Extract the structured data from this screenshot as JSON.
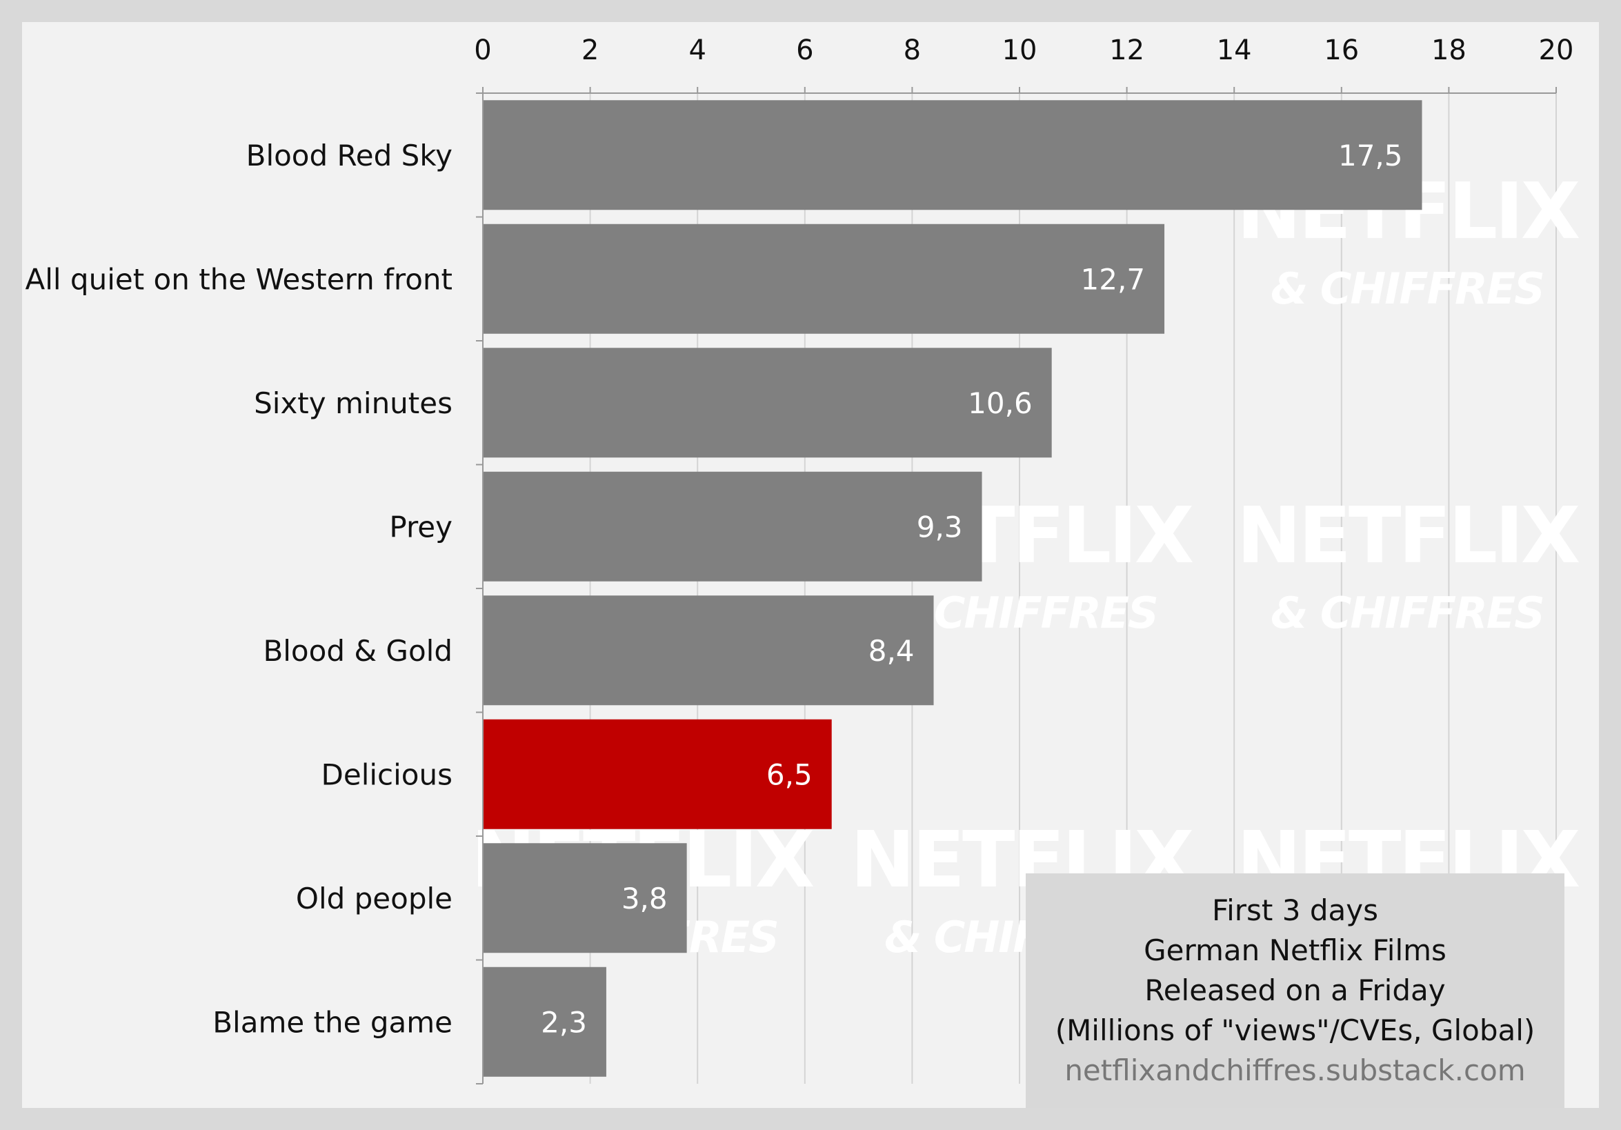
{
  "chart_data": {
    "type": "bar",
    "orientation": "horizontal",
    "categories": [
      "Blood Red Sky",
      "All quiet on the Western front",
      "Sixty minutes",
      "Prey",
      "Blood & Gold",
      "Delicious",
      "Old people",
      "Blame the game"
    ],
    "values": [
      17.5,
      12.7,
      10.6,
      9.3,
      8.4,
      6.5,
      3.8,
      2.3
    ],
    "value_labels": [
      "17,5",
      "12,7",
      "10,6",
      "9,3",
      "8,4",
      "6,5",
      "3,8",
      "2,3"
    ],
    "highlight_index": 5,
    "xlim": [
      0,
      20
    ],
    "x_ticks": [
      0,
      2,
      4,
      6,
      8,
      10,
      12,
      14,
      16,
      18,
      20
    ],
    "x_axis_position": "top",
    "grid": true,
    "title": "",
    "xlabel": "",
    "ylabel": ""
  },
  "info_box": {
    "lines": [
      "First 3 days",
      "German Netflix Films",
      "Released on a Friday",
      "(Millions of \"views\"/CVEs, Global)"
    ],
    "source": "netflixandchiffres.substack.com"
  },
  "watermark": {
    "line1": "NETFLIX",
    "line2": "& CHIFFRES"
  },
  "colors": {
    "background": "#d9d9d9",
    "plot_background": "#f2f2f2",
    "bar": "#808080",
    "highlight_bar": "#c00000",
    "value_text": "#ffffff",
    "grid": "#d4d4d4"
  }
}
